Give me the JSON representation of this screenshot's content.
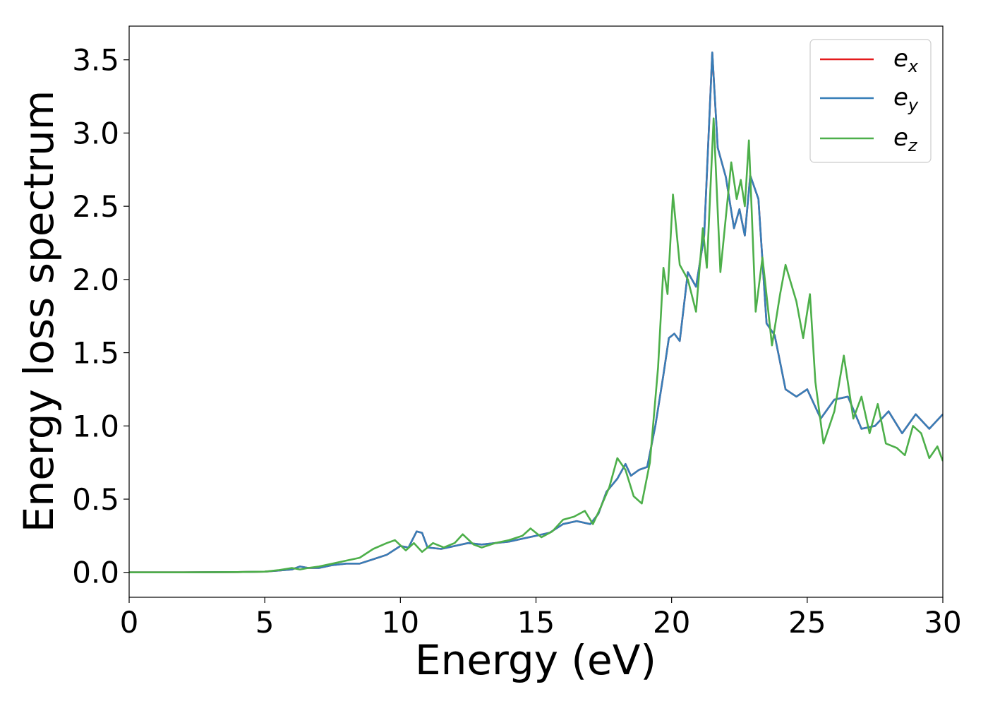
{
  "chart_data": {
    "type": "line",
    "xlabel": "Energy (eV)",
    "ylabel": "Energy loss spectrum",
    "xlim": [
      0,
      30
    ],
    "ylim": [
      -0.17,
      3.73
    ],
    "xticks": [
      0,
      5,
      10,
      15,
      20,
      25,
      30
    ],
    "xtick_labels": [
      "0",
      "5",
      "10",
      "15",
      "20",
      "25",
      "30"
    ],
    "yticks": [
      0.0,
      0.5,
      1.0,
      1.5,
      2.0,
      2.5,
      3.0,
      3.5
    ],
    "ytick_labels": [
      "0.0",
      "0.5",
      "1.0",
      "1.5",
      "2.0",
      "2.5",
      "3.0",
      "3.5"
    ],
    "grid": false,
    "legend_position": "top-right",
    "series": [
      {
        "name": "e",
        "subscript": "x",
        "color": "#e41a1c",
        "points": [
          [
            0,
            0
          ],
          [
            2,
            0
          ],
          [
            4,
            0.002
          ],
          [
            5,
            0.005
          ],
          [
            5.5,
            0.012
          ],
          [
            6,
            0.02
          ],
          [
            6.3,
            0.04
          ],
          [
            6.6,
            0.03
          ],
          [
            7,
            0.03
          ],
          [
            7.5,
            0.05
          ],
          [
            8,
            0.06
          ],
          [
            8.5,
            0.06
          ],
          [
            9,
            0.09
          ],
          [
            9.5,
            0.12
          ],
          [
            10,
            0.18
          ],
          [
            10.3,
            0.17
          ],
          [
            10.6,
            0.28
          ],
          [
            10.8,
            0.27
          ],
          [
            11,
            0.17
          ],
          [
            11.5,
            0.16
          ],
          [
            12,
            0.18
          ],
          [
            12.5,
            0.2
          ],
          [
            13,
            0.19
          ],
          [
            13.5,
            0.2
          ],
          [
            14,
            0.21
          ],
          [
            14.5,
            0.23
          ],
          [
            15,
            0.25
          ],
          [
            15.5,
            0.27
          ],
          [
            16,
            0.33
          ],
          [
            16.5,
            0.35
          ],
          [
            17,
            0.33
          ],
          [
            17.3,
            0.4
          ],
          [
            17.6,
            0.55
          ],
          [
            18,
            0.64
          ],
          [
            18.3,
            0.74
          ],
          [
            18.5,
            0.66
          ],
          [
            18.8,
            0.7
          ],
          [
            19.1,
            0.72
          ],
          [
            19.4,
            1.0
          ],
          [
            19.7,
            1.35
          ],
          [
            19.9,
            1.6
          ],
          [
            20.1,
            1.63
          ],
          [
            20.3,
            1.58
          ],
          [
            20.6,
            2.05
          ],
          [
            20.9,
            1.95
          ],
          [
            21.2,
            2.3
          ],
          [
            21.5,
            3.55
          ],
          [
            21.7,
            2.9
          ],
          [
            22,
            2.7
          ],
          [
            22.3,
            2.35
          ],
          [
            22.5,
            2.48
          ],
          [
            22.7,
            2.3
          ],
          [
            22.9,
            2.71
          ],
          [
            23.2,
            2.55
          ],
          [
            23.5,
            1.7
          ],
          [
            23.8,
            1.62
          ],
          [
            24.2,
            1.25
          ],
          [
            24.6,
            1.2
          ],
          [
            25,
            1.25
          ],
          [
            25.5,
            1.05
          ],
          [
            26,
            1.18
          ],
          [
            26.5,
            1.2
          ],
          [
            27,
            0.98
          ],
          [
            27.5,
            1.0
          ],
          [
            28,
            1.1
          ],
          [
            28.5,
            0.95
          ],
          [
            29,
            1.08
          ],
          [
            29.5,
            0.98
          ],
          [
            30,
            1.08
          ]
        ]
      },
      {
        "name": "e",
        "subscript": "y",
        "color": "#377eb8",
        "points": [
          [
            0,
            0
          ],
          [
            2,
            0
          ],
          [
            4,
            0.002
          ],
          [
            5,
            0.005
          ],
          [
            5.5,
            0.012
          ],
          [
            6,
            0.02
          ],
          [
            6.3,
            0.04
          ],
          [
            6.6,
            0.03
          ],
          [
            7,
            0.03
          ],
          [
            7.5,
            0.05
          ],
          [
            8,
            0.06
          ],
          [
            8.5,
            0.06
          ],
          [
            9,
            0.09
          ],
          [
            9.5,
            0.12
          ],
          [
            10,
            0.18
          ],
          [
            10.3,
            0.17
          ],
          [
            10.6,
            0.28
          ],
          [
            10.8,
            0.27
          ],
          [
            11,
            0.17
          ],
          [
            11.5,
            0.16
          ],
          [
            12,
            0.18
          ],
          [
            12.5,
            0.2
          ],
          [
            13,
            0.19
          ],
          [
            13.5,
            0.2
          ],
          [
            14,
            0.21
          ],
          [
            14.5,
            0.23
          ],
          [
            15,
            0.25
          ],
          [
            15.5,
            0.27
          ],
          [
            16,
            0.33
          ],
          [
            16.5,
            0.35
          ],
          [
            17,
            0.33
          ],
          [
            17.3,
            0.4
          ],
          [
            17.6,
            0.55
          ],
          [
            18,
            0.64
          ],
          [
            18.3,
            0.74
          ],
          [
            18.5,
            0.66
          ],
          [
            18.8,
            0.7
          ],
          [
            19.1,
            0.72
          ],
          [
            19.4,
            1.0
          ],
          [
            19.7,
            1.35
          ],
          [
            19.9,
            1.6
          ],
          [
            20.1,
            1.63
          ],
          [
            20.3,
            1.58
          ],
          [
            20.6,
            2.05
          ],
          [
            20.9,
            1.95
          ],
          [
            21.2,
            2.3
          ],
          [
            21.5,
            3.55
          ],
          [
            21.7,
            2.9
          ],
          [
            22,
            2.7
          ],
          [
            22.3,
            2.35
          ],
          [
            22.5,
            2.48
          ],
          [
            22.7,
            2.3
          ],
          [
            22.9,
            2.71
          ],
          [
            23.2,
            2.55
          ],
          [
            23.5,
            1.7
          ],
          [
            23.8,
            1.62
          ],
          [
            24.2,
            1.25
          ],
          [
            24.6,
            1.2
          ],
          [
            25,
            1.25
          ],
          [
            25.5,
            1.05
          ],
          [
            26,
            1.18
          ],
          [
            26.5,
            1.2
          ],
          [
            27,
            0.98
          ],
          [
            27.5,
            1.0
          ],
          [
            28,
            1.1
          ],
          [
            28.5,
            0.95
          ],
          [
            29,
            1.08
          ],
          [
            29.5,
            0.98
          ],
          [
            30,
            1.08
          ]
        ]
      },
      {
        "name": "e",
        "subscript": "z",
        "color": "#4daf4a",
        "points": [
          [
            0,
            0
          ],
          [
            2,
            0
          ],
          [
            4,
            0.002
          ],
          [
            5,
            0.005
          ],
          [
            5.5,
            0.015
          ],
          [
            6,
            0.03
          ],
          [
            6.3,
            0.02
          ],
          [
            6.6,
            0.03
          ],
          [
            7,
            0.04
          ],
          [
            7.5,
            0.06
          ],
          [
            8,
            0.08
          ],
          [
            8.5,
            0.1
          ],
          [
            9,
            0.16
          ],
          [
            9.5,
            0.2
          ],
          [
            9.8,
            0.22
          ],
          [
            10.2,
            0.15
          ],
          [
            10.5,
            0.2
          ],
          [
            10.8,
            0.14
          ],
          [
            11.2,
            0.2
          ],
          [
            11.6,
            0.17
          ],
          [
            12,
            0.2
          ],
          [
            12.3,
            0.26
          ],
          [
            12.7,
            0.19
          ],
          [
            13,
            0.17
          ],
          [
            13.5,
            0.2
          ],
          [
            14,
            0.22
          ],
          [
            14.5,
            0.25
          ],
          [
            14.8,
            0.3
          ],
          [
            15.2,
            0.24
          ],
          [
            15.6,
            0.28
          ],
          [
            16,
            0.36
          ],
          [
            16.4,
            0.38
          ],
          [
            16.8,
            0.42
          ],
          [
            17.1,
            0.33
          ],
          [
            17.4,
            0.45
          ],
          [
            17.7,
            0.58
          ],
          [
            18,
            0.78
          ],
          [
            18.3,
            0.7
          ],
          [
            18.6,
            0.52
          ],
          [
            18.9,
            0.47
          ],
          [
            19.2,
            0.75
          ],
          [
            19.5,
            1.4
          ],
          [
            19.7,
            2.08
          ],
          [
            19.85,
            1.9
          ],
          [
            20.05,
            2.58
          ],
          [
            20.3,
            2.1
          ],
          [
            20.6,
            2.0
          ],
          [
            20.9,
            1.78
          ],
          [
            21.15,
            2.35
          ],
          [
            21.3,
            2.08
          ],
          [
            21.55,
            3.1
          ],
          [
            21.8,
            2.05
          ],
          [
            22.2,
            2.8
          ],
          [
            22.4,
            2.55
          ],
          [
            22.55,
            2.68
          ],
          [
            22.7,
            2.5
          ],
          [
            22.85,
            2.95
          ],
          [
            23.1,
            1.78
          ],
          [
            23.35,
            2.15
          ],
          [
            23.7,
            1.55
          ],
          [
            24,
            1.9
          ],
          [
            24.2,
            2.1
          ],
          [
            24.6,
            1.85
          ],
          [
            24.85,
            1.6
          ],
          [
            25.1,
            1.9
          ],
          [
            25.3,
            1.3
          ],
          [
            25.6,
            0.88
          ],
          [
            26,
            1.1
          ],
          [
            26.35,
            1.48
          ],
          [
            26.7,
            1.05
          ],
          [
            27,
            1.2
          ],
          [
            27.3,
            0.95
          ],
          [
            27.6,
            1.15
          ],
          [
            27.9,
            0.88
          ],
          [
            28.3,
            0.85
          ],
          [
            28.6,
            0.8
          ],
          [
            28.9,
            1.0
          ],
          [
            29.2,
            0.95
          ],
          [
            29.5,
            0.78
          ],
          [
            29.8,
            0.86
          ],
          [
            30,
            0.76
          ]
        ]
      }
    ]
  }
}
